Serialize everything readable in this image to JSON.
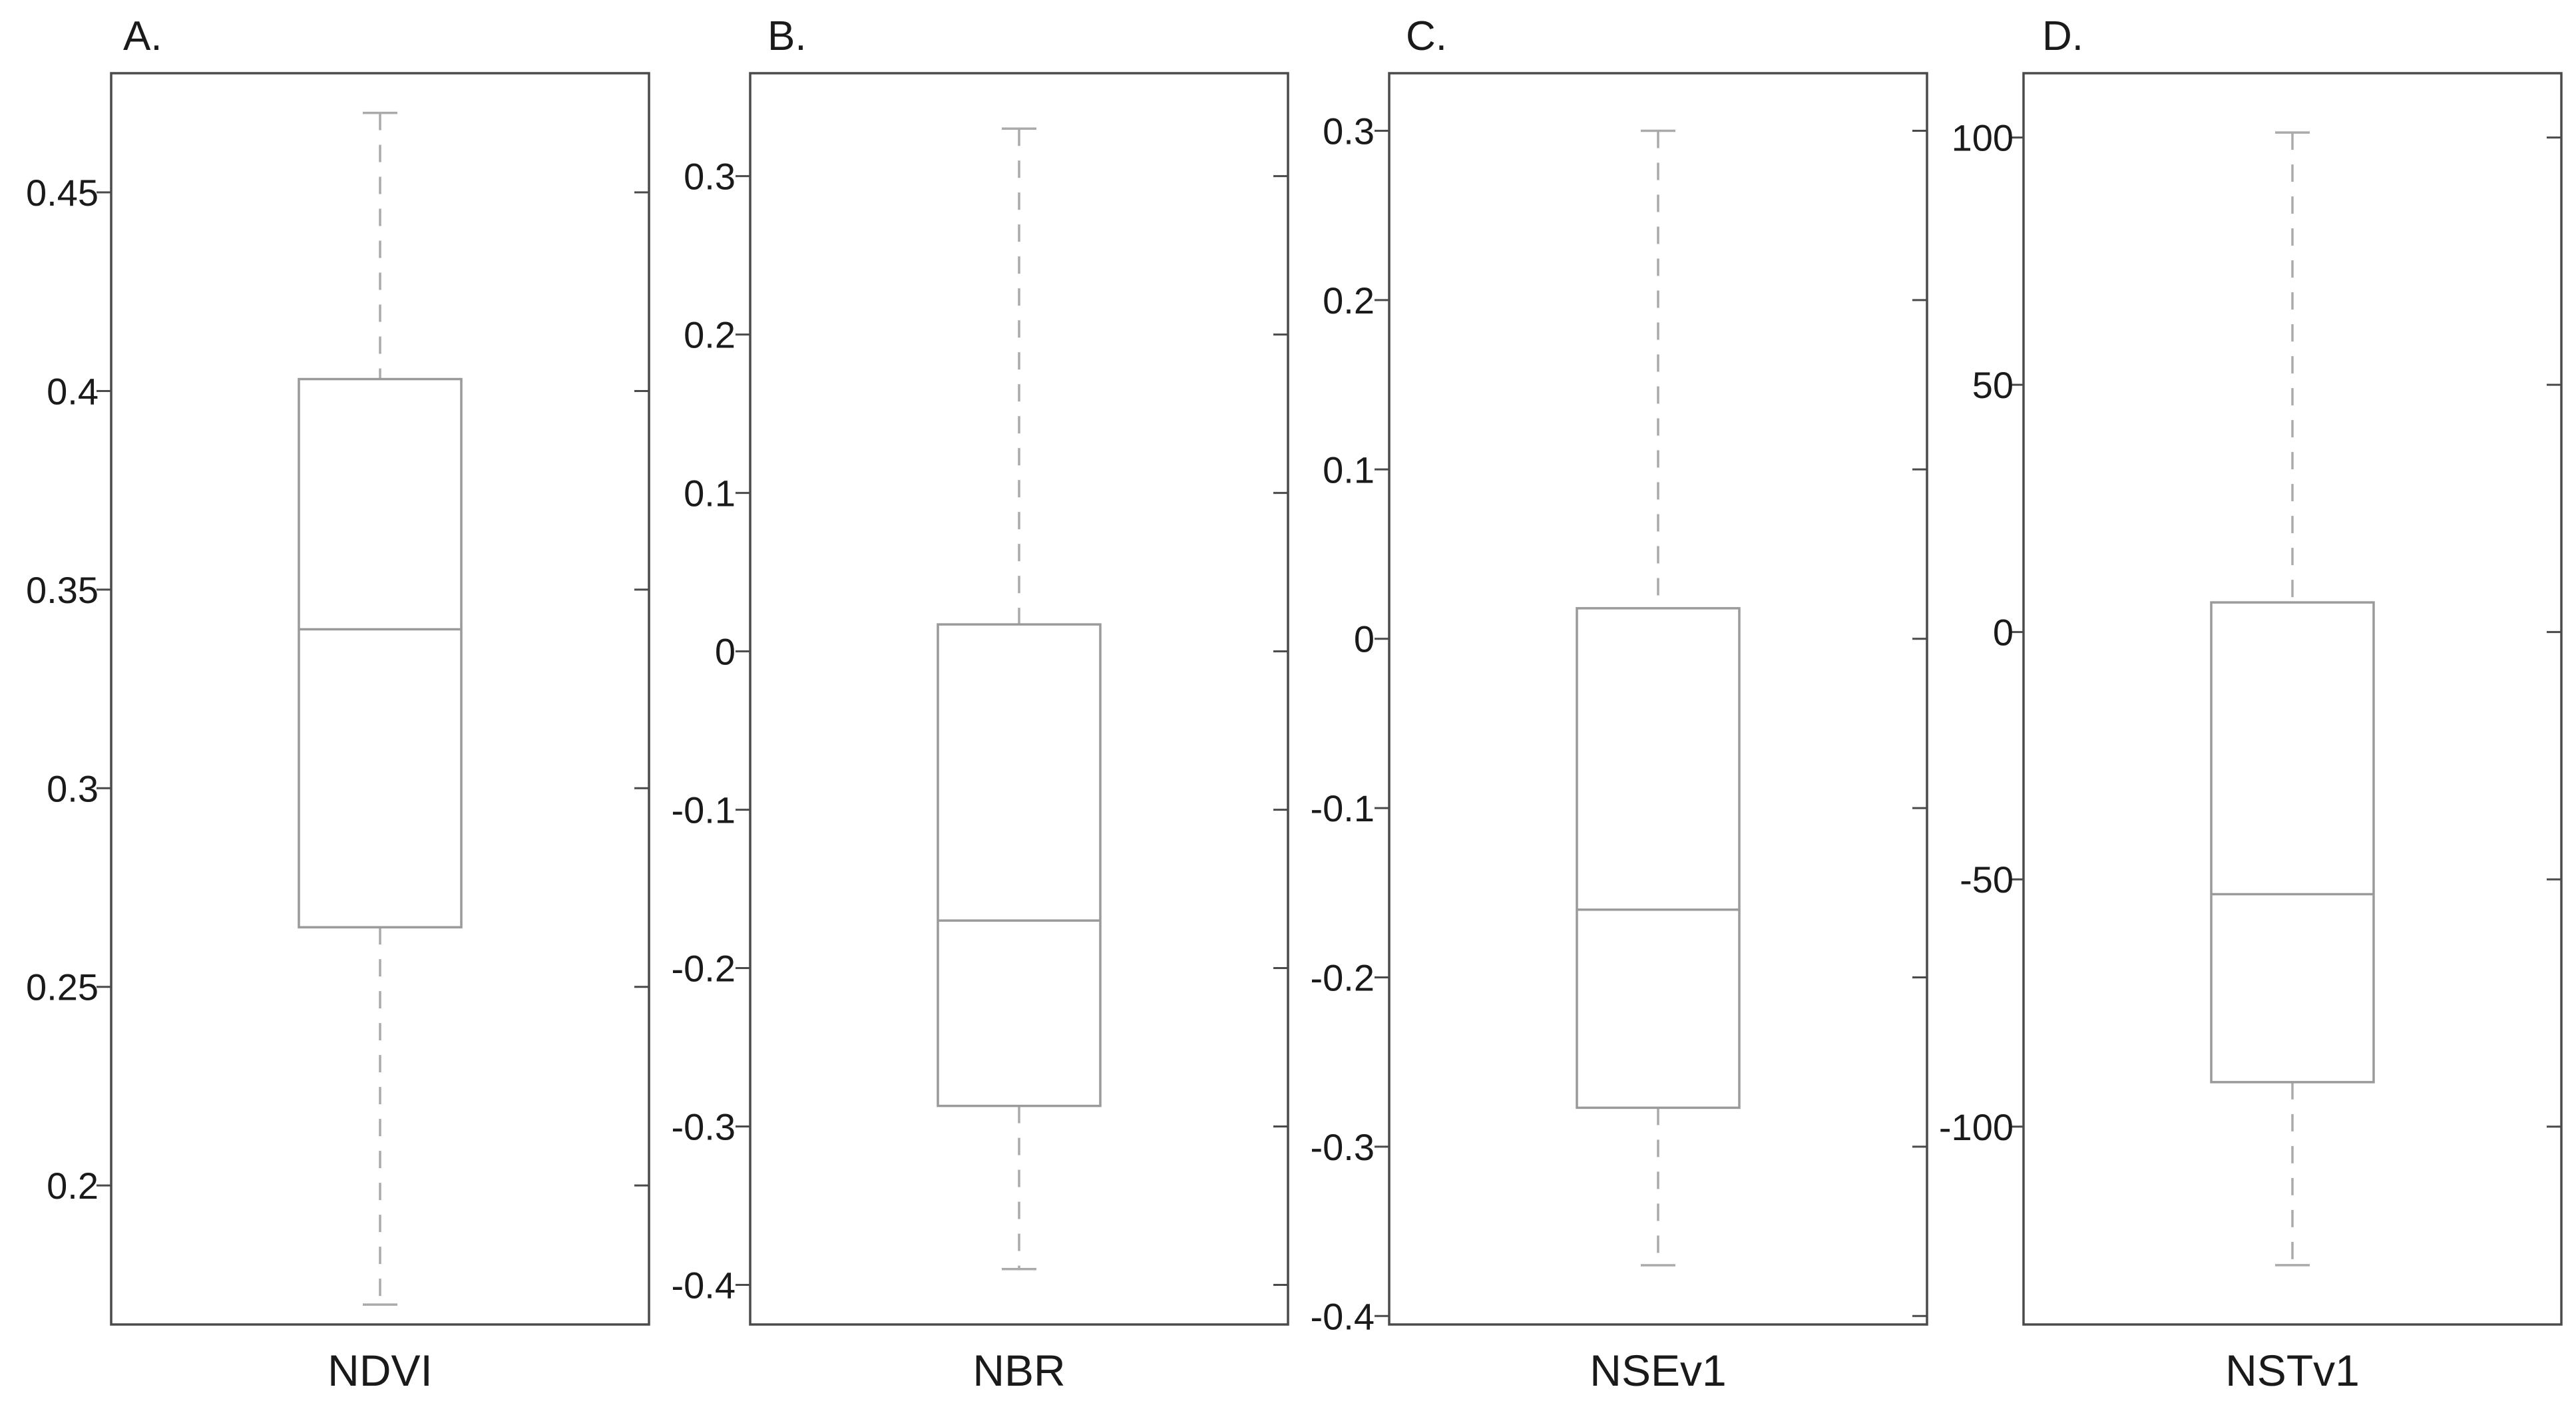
{
  "chart_data": [
    {
      "type": "box",
      "panel": "A.",
      "xlabel": "NDVI",
      "ylim": [
        0.165,
        0.48
      ],
      "yticks": [
        0.2,
        0.25,
        0.3,
        0.35,
        0.4,
        0.45
      ],
      "ytick_labels": [
        "0.2",
        "0.25",
        "0.3",
        "0.35",
        "0.4",
        "0.45"
      ],
      "box": {
        "min": 0.17,
        "q1": 0.265,
        "median": 0.34,
        "q3": 0.403,
        "max": 0.47
      }
    },
    {
      "type": "box",
      "panel": "B.",
      "xlabel": "NBR",
      "ylim": [
        -0.425,
        0.365
      ],
      "yticks": [
        -0.4,
        -0.3,
        -0.2,
        -0.1,
        0,
        0.1,
        0.2,
        0.3
      ],
      "ytick_labels": [
        "-0.4",
        "-0.3",
        "-0.2",
        "-0.1",
        "0",
        "0.1",
        "0.2",
        "0.3"
      ],
      "box": {
        "min": -0.39,
        "q1": -0.287,
        "median": -0.17,
        "q3": 0.017,
        "max": 0.33
      }
    },
    {
      "type": "box",
      "panel": "C.",
      "xlabel": "NSEv1",
      "ylim": [
        -0.405,
        0.334
      ],
      "yticks": [
        -0.4,
        -0.3,
        -0.2,
        -0.1,
        0,
        0.1,
        0.2,
        0.3
      ],
      "ytick_labels": [
        "-0.4",
        "-0.3",
        "-0.2",
        "-0.1",
        "0",
        "0.1",
        "0.2",
        "0.3"
      ],
      "box": {
        "min": -0.37,
        "q1": -0.277,
        "median": -0.16,
        "q3": 0.018,
        "max": 0.3
      }
    },
    {
      "type": "box",
      "panel": "D.",
      "xlabel": "NSTv1",
      "ylim": [
        -140,
        113
      ],
      "yticks": [
        -100,
        -50,
        0,
        50,
        100
      ],
      "ytick_labels": [
        "-100",
        "-50",
        "0",
        "50",
        "100"
      ],
      "box": {
        "min": -128,
        "q1": -91,
        "median": -53,
        "q3": 6,
        "max": 101
      }
    }
  ],
  "colors": {
    "frame": "#4a4a4a",
    "box": "#9a9a9a",
    "whisker": "#aaaaaa",
    "text": "#1a1a1a"
  }
}
